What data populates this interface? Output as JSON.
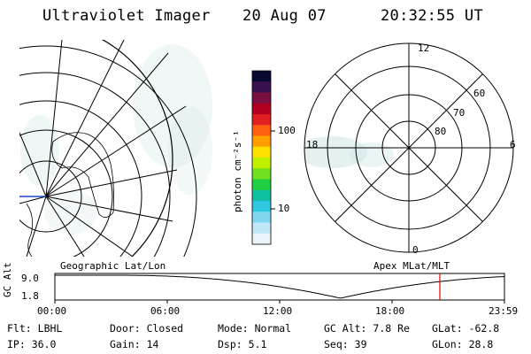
{
  "header": {
    "instrument": "Ultraviolet Imager",
    "date": "20 Aug 07",
    "time": "20:32:55 UT"
  },
  "colorbar": {
    "unit_label": "photon cm⁻²s⁻¹",
    "ticks": [
      "100",
      "10"
    ],
    "colors": [
      "#0a0a30",
      "#3a1050",
      "#7a1040",
      "#b00020",
      "#e02020",
      "#ff6010",
      "#ffa000",
      "#ffe000",
      "#c0f000",
      "#70e020",
      "#20d040",
      "#10c0a0",
      "#30c8e0",
      "#80d8f0",
      "#c0e8f8",
      "#e8f4fa"
    ]
  },
  "left_map": {
    "label": "Geographic Lat/Lon"
  },
  "right_map": {
    "label": "Apex MLat/MLT",
    "mlt_labels": {
      "top": "12",
      "left": "18",
      "right": "6",
      "bottom": "0"
    },
    "lat_labels": [
      "60",
      "70",
      "80"
    ]
  },
  "altitude_plot": {
    "ylabel": "GC Alt",
    "ymax": "9.0",
    "ymin": "1.8",
    "x_ticks": [
      "00:00",
      "06:00",
      "12:00",
      "18:00",
      "23:59"
    ],
    "current_time_hours": 20.55,
    "marker_color": "#e00000"
  },
  "status": {
    "row1": [
      {
        "key": "Flt:",
        "value": "LBHL"
      },
      {
        "key": "Door:",
        "value": "Closed"
      },
      {
        "key": "Mode:",
        "value": "Normal"
      },
      {
        "key": "GC Alt:",
        "value": "7.8 Re"
      },
      {
        "key": "GLat:",
        "value": "-62.8"
      }
    ],
    "row2": [
      {
        "key": "IP:",
        "value": "36.0"
      },
      {
        "key": "Gain:",
        "value": "14"
      },
      {
        "key": "Dsp:",
        "value": "5.1"
      },
      {
        "key": "Seq:",
        "value": "39"
      },
      {
        "key": "GLon:",
        "value": "28.8"
      }
    ]
  }
}
